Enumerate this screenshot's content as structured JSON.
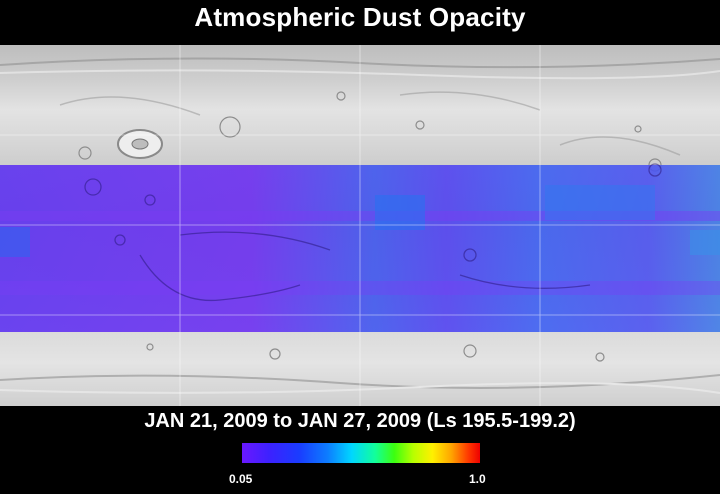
{
  "title": "Atmospheric Dust Opacity",
  "date_range": "JAN 21, 2009 to JAN 27, 2009 (Ls 195.5-199.2)",
  "colorbar": {
    "min_label": "0.05",
    "max_label": "1.0",
    "colors": [
      "#6a18ff",
      "#3b22ff",
      "#1a3cff",
      "#0d7dff",
      "#00d6ff",
      "#12ff9a",
      "#3cff10",
      "#b8ff00",
      "#fff000",
      "#ffa400",
      "#ff3a00",
      "#ee0000"
    ]
  },
  "map": {
    "base": "shaded relief of Mars, grayscale",
    "overlay_color_low": "#5a2cf0",
    "overlay_color_mid": "#2a5ef0"
  }
}
